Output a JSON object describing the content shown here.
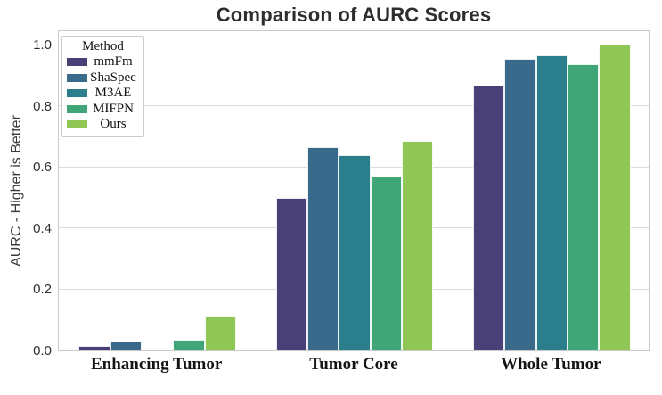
{
  "chart_data": {
    "type": "bar",
    "title": "Comparison of AURC Scores",
    "xlabel": "",
    "ylabel": "AURC - Higher is Better",
    "categories": [
      "Enhancing Tumor",
      "Tumor Core",
      "Whole Tumor"
    ],
    "series": [
      {
        "name": "mmFm",
        "color": "#4a4078",
        "values": [
          0.015,
          0.5,
          0.865
        ]
      },
      {
        "name": "ShaSpec",
        "color": "#396a8c",
        "values": [
          0.03,
          0.665,
          0.955
        ]
      },
      {
        "name": "M3AE",
        "color": "#2b7f8c",
        "values": [
          0.0,
          0.64,
          0.965
        ]
      },
      {
        "name": "MIFPN",
        "color": "#40a678",
        "values": [
          0.035,
          0.57,
          0.935
        ]
      },
      {
        "name": "Ours",
        "color": "#90c655",
        "values": [
          0.115,
          0.685,
          1.0
        ]
      }
    ],
    "ylim": [
      0,
      1.05
    ],
    "yticks": [
      0.0,
      0.2,
      0.4,
      0.6,
      0.8,
      1.0
    ],
    "ytick_labels": [
      "0.0",
      "0.2",
      "0.4",
      "0.6",
      "0.8",
      "1.0"
    ],
    "legend_title": "Method",
    "legend_position": "upper left",
    "grid": true
  }
}
